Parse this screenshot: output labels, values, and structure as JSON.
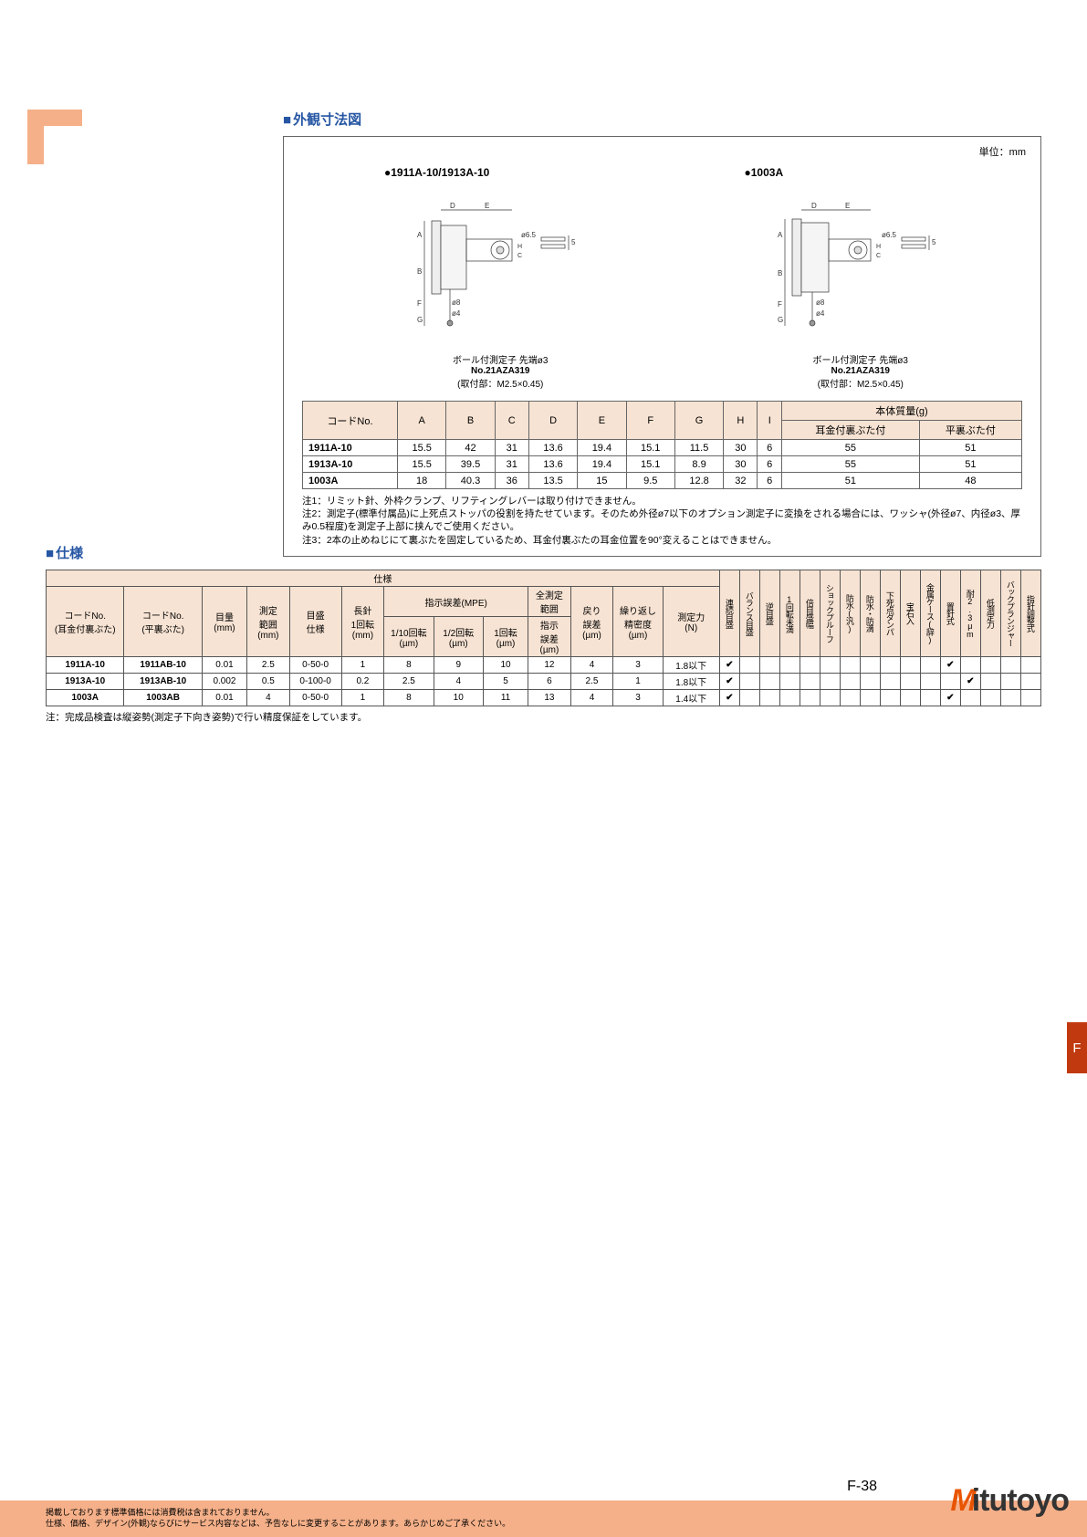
{
  "colors": {
    "accent_blue": "#2656a3",
    "header_bg": "#f7e3d3",
    "orange_light": "#f5b089",
    "orange_dark": "#e85400",
    "side_tab": "#c13a0f"
  },
  "dimension_section": {
    "title": "外観寸法図",
    "unit": "単位：mm",
    "drawings": [
      {
        "title": "●1911A-10/1913A-10",
        "caption_lines": [
          "ボール付測定子 先端ø3",
          "No.21AZA319",
          "(取付部：M2.5×0.45)"
        ]
      },
      {
        "title": "●1003A",
        "caption_lines": [
          "ボール付測定子 先端ø3",
          "No.21AZA319",
          "(取付部：M2.5×0.45)"
        ]
      }
    ],
    "table": {
      "headers_top": [
        "コードNo.",
        "A",
        "B",
        "C",
        "D",
        "E",
        "F",
        "G",
        "H",
        "I",
        "本体質量(g)"
      ],
      "subheaders": [
        "耳金付裏ぶた付",
        "平裏ぶた付"
      ],
      "rows": [
        [
          "1911A-10",
          "15.5",
          "42",
          "31",
          "13.6",
          "19.4",
          "15.1",
          "11.5",
          "30",
          "6",
          "55",
          "51"
        ],
        [
          "1913A-10",
          "15.5",
          "39.5",
          "31",
          "13.6",
          "19.4",
          "15.1",
          "8.9",
          "30",
          "6",
          "55",
          "51"
        ],
        [
          "1003A",
          "18",
          "40.3",
          "36",
          "13.5",
          "15",
          "9.5",
          "12.8",
          "32",
          "6",
          "51",
          "48"
        ]
      ]
    },
    "notes": [
      "注1：リミット針、外枠クランプ、リフティングレバーは取り付けできません。",
      "注2：測定子(標準付属品)に上死点ストッパの役割を持たせています。そのため外径ø7以下のオプション測定子に変換をされる場合には、ワッシャ(外径ø7、内径ø3、厚み0.5程度)を測定子上部に挟んでご使用ください。",
      "注3：2本の止めねじにて裏ぶたを固定しているため、耳金付裏ぶたの耳金位置を90°変えることはできません。"
    ]
  },
  "spec_section": {
    "title": "仕様",
    "group_header": "仕様",
    "col_groups": {
      "code1": "コードNo.\n(耳金付裏ぶた)",
      "code2": "コードNo.\n(平裏ぶた)",
      "me": "目量\n(mm)",
      "range": "測定\n範囲\n(mm)",
      "dial": "目盛\n仕様",
      "long_needle": "長針\n1回転\n(mm)",
      "mpe_group": "指示誤差(MPE)",
      "mpe_110": "1/10回転\n(µm)",
      "mpe_12": "1/2回転\n(µm)",
      "mpe_1": "1回転\n(µm)",
      "full_range_group": "全測定\n範囲",
      "full_range": "指示\n誤差\n(µm)",
      "return": "戻り\n誤差\n(µm)",
      "repeat": "繰り返し\n精密度\n(µm)",
      "force": "測定力\n(N)"
    },
    "feature_headers": [
      "連続目盛",
      "バランス目盛",
      "逆目盛",
      "1回転未満",
      "倍目盛幅",
      "ショックプルーフ",
      "防水(汎)",
      "防水・防滴",
      "下死点ダンパ",
      "宝石入",
      "金属ケース(辞)",
      "置針式",
      "耐2.3μm",
      "低測定力",
      "バックプランジャー",
      "指針調整式"
    ],
    "rows": [
      {
        "c1": "1911A-10",
        "c2": "1911AB-10",
        "me": "0.01",
        "range": "2.5",
        "dial": "0-50-0",
        "ln": "1",
        "m110": "8",
        "m12": "9",
        "m1": "10",
        "fr": "12",
        "ret": "4",
        "rep": "3",
        "force": "1.8以下",
        "feat": [
          true,
          false,
          false,
          false,
          false,
          false,
          false,
          false,
          false,
          false,
          false,
          true,
          false,
          false,
          false,
          false
        ]
      },
      {
        "c1": "1913A-10",
        "c2": "1913AB-10",
        "me": "0.002",
        "range": "0.5",
        "dial": "0-100-0",
        "ln": "0.2",
        "m110": "2.5",
        "m12": "4",
        "m1": "5",
        "fr": "6",
        "ret": "2.5",
        "rep": "1",
        "force": "1.8以下",
        "feat": [
          true,
          false,
          false,
          false,
          false,
          false,
          false,
          false,
          false,
          false,
          false,
          false,
          true,
          false,
          false,
          false
        ]
      },
      {
        "c1": "1003A",
        "c2": "1003AB",
        "me": "0.01",
        "range": "4",
        "dial": "0-50-0",
        "ln": "1",
        "m110": "8",
        "m12": "10",
        "m1": "11",
        "fr": "13",
        "ret": "4",
        "rep": "3",
        "force": "1.4以下",
        "feat": [
          true,
          false,
          false,
          false,
          false,
          false,
          false,
          false,
          false,
          false,
          false,
          true,
          false,
          false,
          false,
          false
        ]
      }
    ],
    "note": "注：完成品検査は縦姿勢(測定子下向き姿勢)で行い精度保証をしています。"
  },
  "footer": {
    "line1": "掲載しております標準価格には消費税は含まれておりません。",
    "line2": "仕様、価格、デザイン(外観)ならびにサービス内容などは、予告なしに変更することがあります。あらかじめご了承ください。",
    "page": "F-38",
    "logo_text": "itutoyo"
  },
  "side_tab": "F"
}
